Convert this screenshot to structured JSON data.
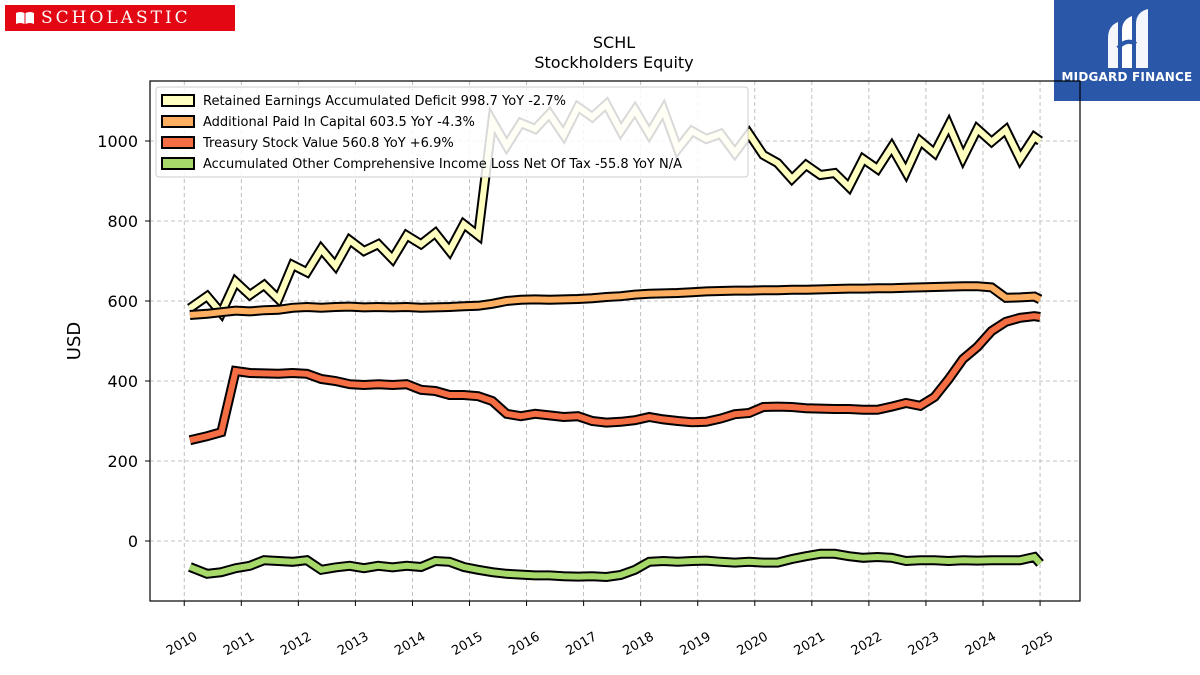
{
  "brand": {
    "left_logo": "SCHOLASTIC",
    "right_logo": "MIDGARD FINANCE",
    "left_color": "#e30613",
    "right_color": "#2a57a8"
  },
  "chart_data": {
    "type": "line",
    "title": "SCHL",
    "subtitle": "Stockholders  Equity",
    "xlabel": "",
    "ylabel": "USD",
    "xlim": [
      2009.4,
      2025.7
    ],
    "ylim": [
      -150,
      1150
    ],
    "grid": true,
    "legend_position": "top-left",
    "x_ticks": [
      "2010",
      "2011",
      "2012",
      "2013",
      "2014",
      "2015",
      "2016",
      "2017",
      "2018",
      "2019",
      "2020",
      "2021",
      "2022",
      "2023",
      "2024",
      "2025"
    ],
    "y_ticks": [
      0,
      200,
      400,
      600,
      800,
      1000
    ],
    "x": [
      2010.1,
      2010.4,
      2010.65,
      2010.9,
      2011.15,
      2011.4,
      2011.65,
      2011.9,
      2012.15,
      2012.4,
      2012.65,
      2012.9,
      2013.15,
      2013.4,
      2013.65,
      2013.9,
      2014.15,
      2014.4,
      2014.65,
      2014.9,
      2015.15,
      2015.4,
      2015.65,
      2015.9,
      2016.15,
      2016.4,
      2016.65,
      2016.9,
      2017.15,
      2017.4,
      2017.65,
      2017.9,
      2018.15,
      2018.4,
      2018.65,
      2018.9,
      2019.15,
      2019.4,
      2019.65,
      2019.9,
      2020.15,
      2020.4,
      2020.65,
      2020.9,
      2021.15,
      2021.4,
      2021.65,
      2021.9,
      2022.15,
      2022.4,
      2022.65,
      2022.9,
      2023.15,
      2023.4,
      2023.65,
      2023.9,
      2024.15,
      2024.4,
      2024.65,
      2024.9,
      2025.0
    ],
    "series": [
      {
        "name": "Retained Earnings Accumulated Deficit",
        "legend": "Retained Earnings Accumulated Deficit  998.7 YoY -2.7%",
        "color": "#ffffbf",
        "values": [
          582,
          612,
          570,
          648,
          615,
          640,
          605,
          690,
          672,
          730,
          688,
          752,
          725,
          742,
          705,
          764,
          742,
          770,
          725,
          792,
          764,
          1050,
          988,
          1045,
          1030,
          1068,
          1015,
          1085,
          1060,
          1092,
          1025,
          1078,
          1018,
          1078,
          980,
          1025,
          1005,
          1018,
          970,
          1018,
          965,
          945,
          905,
          940,
          915,
          920,
          885,
          955,
          930,
          985,
          922,
          1000,
          970,
          1040,
          958,
          1030,
          998,
          1028,
          955,
          1010,
          1000
        ]
      },
      {
        "name": "Additional Paid In Capital",
        "legend": "Additional Paid In Capital  603.5 YoY -4.3%",
        "color": "#fdae61",
        "values": [
          565,
          568,
          572,
          576,
          574,
          577,
          578,
          583,
          585,
          583,
          585,
          586,
          584,
          585,
          584,
          585,
          583,
          584,
          585,
          587,
          588,
          593,
          600,
          603,
          604,
          603,
          604,
          605,
          607,
          610,
          612,
          616,
          618,
          619,
          620,
          622,
          624,
          625,
          626,
          626,
          627,
          627,
          628,
          628,
          629,
          630,
          631,
          631,
          632,
          632,
          633,
          634,
          635,
          636,
          637,
          637,
          634,
          608,
          609,
          611,
          604
        ]
      },
      {
        "name": "Treasury Stock Value",
        "legend": "Treasury Stock Value  560.8 YoY +6.9%",
        "color": "#f46d43",
        "values": [
          252,
          262,
          272,
          425,
          420,
          419,
          418,
          420,
          418,
          405,
          400,
          392,
          390,
          392,
          390,
          392,
          378,
          375,
          365,
          365,
          362,
          350,
          318,
          312,
          318,
          314,
          310,
          312,
          300,
          296,
          298,
          302,
          310,
          304,
          300,
          297,
          298,
          306,
          317,
          320,
          335,
          336,
          335,
          332,
          331,
          330,
          330,
          328,
          328,
          336,
          345,
          338,
          360,
          405,
          455,
          485,
          525,
          548,
          558,
          562,
          560
        ]
      },
      {
        "name": "Accumulated Other Comprehensive Income Loss Net Of Tax",
        "legend": "Accumulated Other Comprehensive Income Loss Net Of Tax  -55.8 YoY N/A",
        "color": "#a6d96a",
        "values": [
          -65,
          -82,
          -78,
          -68,
          -62,
          -48,
          -50,
          -52,
          -48,
          -72,
          -66,
          -62,
          -68,
          -62,
          -66,
          -62,
          -65,
          -50,
          -52,
          -65,
          -72,
          -78,
          -82,
          -84,
          -86,
          -86,
          -88,
          -89,
          -88,
          -90,
          -85,
          -72,
          -52,
          -50,
          -52,
          -50,
          -49,
          -52,
          -54,
          -52,
          -54,
          -54,
          -45,
          -38,
          -32,
          -32,
          -38,
          -42,
          -40,
          -42,
          -50,
          -48,
          -48,
          -50,
          -48,
          -49,
          -48,
          -48,
          -48,
          -40,
          -56
        ]
      }
    ]
  }
}
